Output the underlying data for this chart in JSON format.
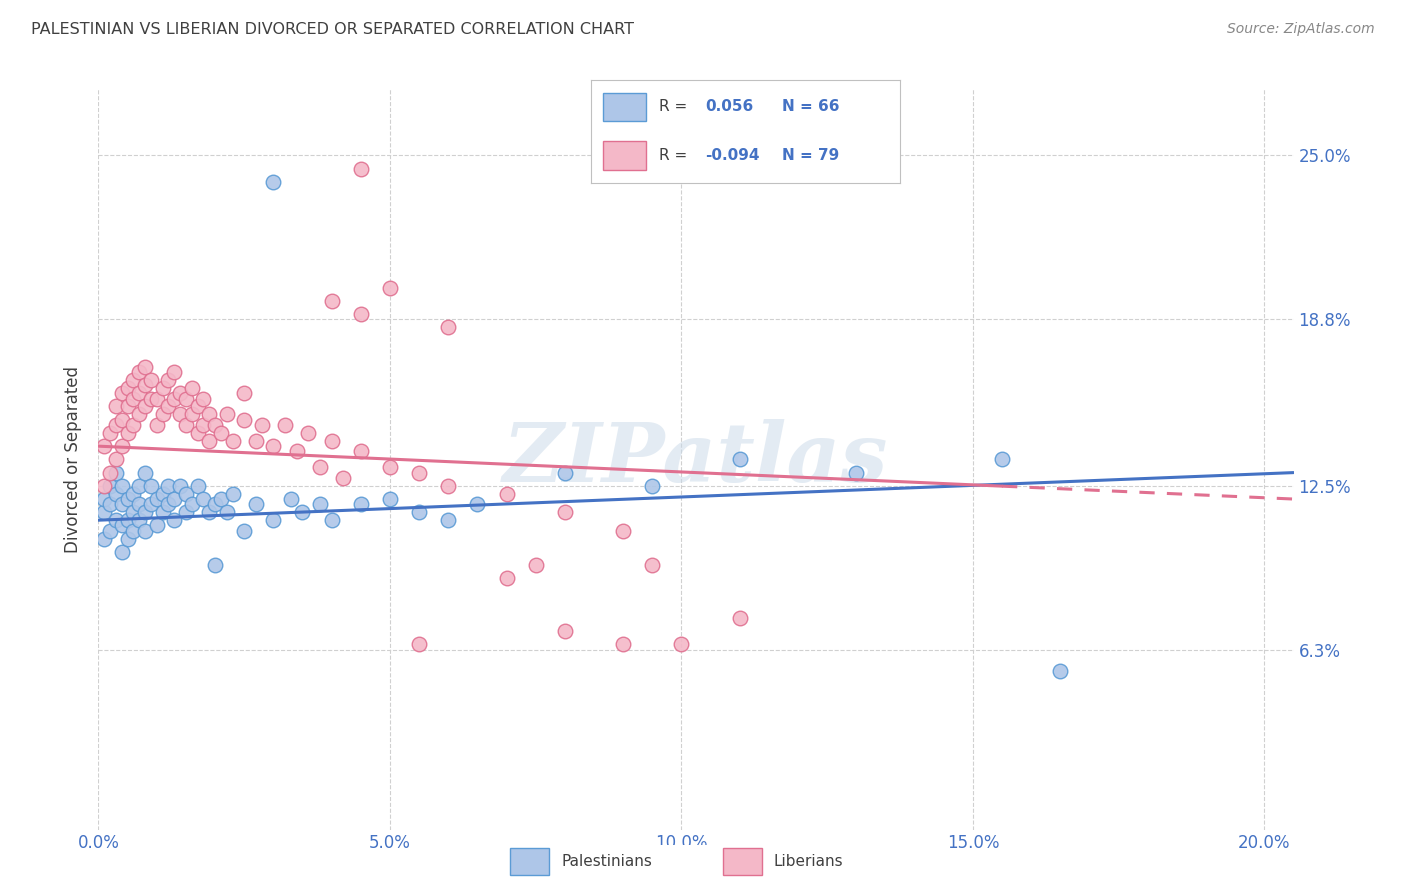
{
  "title": "PALESTINIAN VS LIBERIAN DIVORCED OR SEPARATED CORRELATION CHART",
  "source": "Source: ZipAtlas.com",
  "xlim": [
    0.0,
    0.205
  ],
  "ylim": [
    -0.005,
    0.275
  ],
  "ytick_positions": [
    0.063,
    0.125,
    0.188,
    0.25
  ],
  "ytick_labels": [
    "6.3%",
    "12.5%",
    "18.8%",
    "25.0%"
  ],
  "xtick_positions": [
    0.0,
    0.05,
    0.1,
    0.15,
    0.2
  ],
  "xtick_labels": [
    "0.0%",
    "5.0%",
    "10.0%",
    "15.0%",
    "20.0%"
  ],
  "pal_color": "#aec6e8",
  "pal_edge_color": "#5b9bd5",
  "lib_color": "#f4b8c8",
  "lib_edge_color": "#e07090",
  "pal_line_color": "#4472c4",
  "lib_line_color": "#e07090",
  "grid_color": "#d0d0d0",
  "title_color": "#404040",
  "axis_tick_color": "#4472c4",
  "watermark": "ZIPatlas",
  "background_color": "#ffffff",
  "palestinians_x": [
    0.001,
    0.001,
    0.001,
    0.002,
    0.002,
    0.002,
    0.003,
    0.003,
    0.003,
    0.004,
    0.004,
    0.004,
    0.004,
    0.005,
    0.005,
    0.005,
    0.006,
    0.006,
    0.006,
    0.007,
    0.007,
    0.007,
    0.008,
    0.008,
    0.008,
    0.009,
    0.009,
    0.01,
    0.01,
    0.011,
    0.011,
    0.012,
    0.012,
    0.013,
    0.013,
    0.014,
    0.015,
    0.015,
    0.016,
    0.017,
    0.018,
    0.019,
    0.02,
    0.021,
    0.022,
    0.023,
    0.025,
    0.027,
    0.03,
    0.033,
    0.035,
    0.038,
    0.04,
    0.045,
    0.05,
    0.055,
    0.06,
    0.065,
    0.08,
    0.095,
    0.11,
    0.13,
    0.155,
    0.165,
    0.02,
    0.03
  ],
  "palestinians_y": [
    0.105,
    0.115,
    0.12,
    0.108,
    0.118,
    0.125,
    0.112,
    0.122,
    0.13,
    0.1,
    0.11,
    0.118,
    0.125,
    0.105,
    0.112,
    0.12,
    0.108,
    0.115,
    0.122,
    0.112,
    0.118,
    0.125,
    0.108,
    0.115,
    0.13,
    0.118,
    0.125,
    0.11,
    0.12,
    0.115,
    0.122,
    0.118,
    0.125,
    0.112,
    0.12,
    0.125,
    0.115,
    0.122,
    0.118,
    0.125,
    0.12,
    0.115,
    0.118,
    0.12,
    0.115,
    0.122,
    0.108,
    0.118,
    0.112,
    0.12,
    0.115,
    0.118,
    0.112,
    0.118,
    0.12,
    0.115,
    0.112,
    0.118,
    0.13,
    0.125,
    0.135,
    0.13,
    0.135,
    0.055,
    0.095,
    0.24
  ],
  "liberians_x": [
    0.001,
    0.001,
    0.002,
    0.002,
    0.003,
    0.003,
    0.003,
    0.004,
    0.004,
    0.004,
    0.005,
    0.005,
    0.005,
    0.006,
    0.006,
    0.006,
    0.007,
    0.007,
    0.007,
    0.008,
    0.008,
    0.008,
    0.009,
    0.009,
    0.01,
    0.01,
    0.011,
    0.011,
    0.012,
    0.012,
    0.013,
    0.013,
    0.014,
    0.014,
    0.015,
    0.015,
    0.016,
    0.016,
    0.017,
    0.017,
    0.018,
    0.018,
    0.019,
    0.019,
    0.02,
    0.021,
    0.022,
    0.023,
    0.025,
    0.025,
    0.027,
    0.028,
    0.03,
    0.032,
    0.034,
    0.036,
    0.038,
    0.04,
    0.042,
    0.045,
    0.05,
    0.055,
    0.06,
    0.07,
    0.08,
    0.09,
    0.04,
    0.045,
    0.05,
    0.06,
    0.07,
    0.075,
    0.08,
    0.09,
    0.1,
    0.11,
    0.045,
    0.055,
    0.095
  ],
  "liberians_y": [
    0.125,
    0.14,
    0.13,
    0.145,
    0.135,
    0.148,
    0.155,
    0.14,
    0.15,
    0.16,
    0.145,
    0.155,
    0.162,
    0.148,
    0.158,
    0.165,
    0.152,
    0.16,
    0.168,
    0.155,
    0.163,
    0.17,
    0.158,
    0.165,
    0.148,
    0.158,
    0.152,
    0.162,
    0.155,
    0.165,
    0.158,
    0.168,
    0.152,
    0.16,
    0.148,
    0.158,
    0.152,
    0.162,
    0.145,
    0.155,
    0.148,
    0.158,
    0.142,
    0.152,
    0.148,
    0.145,
    0.152,
    0.142,
    0.15,
    0.16,
    0.142,
    0.148,
    0.14,
    0.148,
    0.138,
    0.145,
    0.132,
    0.142,
    0.128,
    0.138,
    0.132,
    0.13,
    0.125,
    0.122,
    0.115,
    0.108,
    0.195,
    0.19,
    0.2,
    0.185,
    0.09,
    0.095,
    0.07,
    0.065,
    0.065,
    0.075,
    0.245,
    0.065,
    0.095
  ]
}
